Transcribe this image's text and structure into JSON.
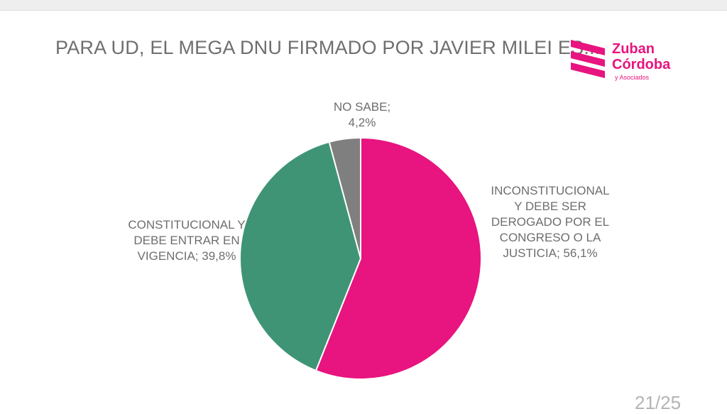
{
  "title": "PARA UD, EL MEGA DNU FIRMADO POR JAVIER MILEI ES...",
  "logo": {
    "line1": "Zuban",
    "line2": "Córdoba",
    "sub": "y Asociados",
    "color": "#e8147f"
  },
  "page_number": "21/25",
  "chart_data": {
    "type": "pie",
    "title": "PARA UD, EL MEGA DNU FIRMADO POR JAVIER MILEI ES...",
    "slices": [
      {
        "label_lines": [
          "INCONSTITUCIONAL",
          "Y DEBE SER",
          "DEROGADO POR EL",
          "CONGRESO O LA",
          "JUSTICIA; 56,1%"
        ],
        "value": 56.1,
        "color": "#e8147f"
      },
      {
        "label_lines": [
          "CONSTITUCIONAL Y",
          "DEBE ENTRAR EN",
          "VIGENCIA; 39,8%"
        ],
        "value": 39.8,
        "color": "#3f9475"
      },
      {
        "label_lines": [
          "NO SABE;",
          "4,2%"
        ],
        "value": 4.2,
        "color": "#7f7f7f"
      }
    ]
  }
}
